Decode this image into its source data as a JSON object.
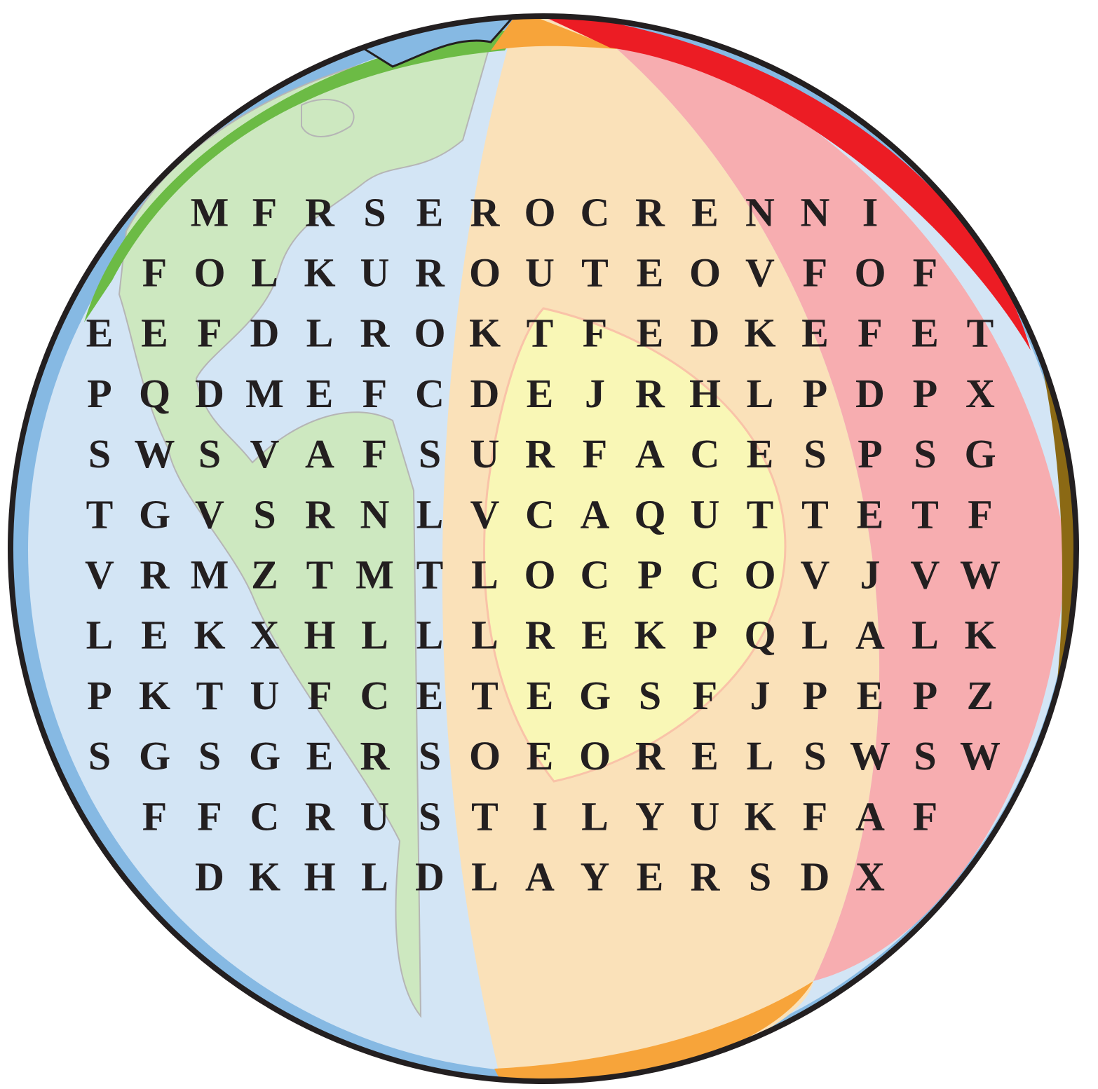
{
  "puzzle": {
    "rows": [
      [
        "M",
        "F",
        "R",
        "S",
        "E",
        "R",
        "O",
        "C",
        "R",
        "E",
        "N",
        "N",
        "I"
      ],
      [
        "F",
        "O",
        "L",
        "K",
        "U",
        "R",
        "O",
        "U",
        "T",
        "E",
        "O",
        "V",
        "F",
        "O",
        "F"
      ],
      [
        "E",
        "E",
        "F",
        "D",
        "L",
        "R",
        "O",
        "K",
        "T",
        "F",
        "E",
        "D",
        "K",
        "E",
        "F",
        "E",
        "T"
      ],
      [
        "P",
        "Q",
        "D",
        "M",
        "E",
        "F",
        "C",
        "D",
        "E",
        "J",
        "R",
        "H",
        "L",
        "P",
        "D",
        "P",
        "X"
      ],
      [
        "S",
        "W",
        "S",
        "V",
        "A",
        "F",
        "S",
        "U",
        "R",
        "F",
        "A",
        "C",
        "E",
        "S",
        "P",
        "S",
        "G"
      ],
      [
        "T",
        "G",
        "V",
        "S",
        "R",
        "N",
        "L",
        "V",
        "C",
        "A",
        "Q",
        "U",
        "T",
        "T",
        "E",
        "T",
        "F"
      ],
      [
        "V",
        "R",
        "M",
        "Z",
        "T",
        "M",
        "T",
        "L",
        "O",
        "C",
        "P",
        "C",
        "O",
        "V",
        "J",
        "V",
        "W"
      ],
      [
        "L",
        "E",
        "K",
        "X",
        "H",
        "L",
        "L",
        "L",
        "R",
        "E",
        "K",
        "P",
        "Q",
        "L",
        "A",
        "L",
        "K"
      ],
      [
        "P",
        "K",
        "T",
        "U",
        "F",
        "C",
        "E",
        "T",
        "E",
        "G",
        "S",
        "F",
        "J",
        "P",
        "E",
        "P",
        "Z"
      ],
      [
        "S",
        "G",
        "S",
        "G",
        "E",
        "R",
        "S",
        "O",
        "E",
        "O",
        "R",
        "E",
        "L",
        "S",
        "W",
        "S",
        "W"
      ],
      [
        "F",
        "F",
        "C",
        "R",
        "U",
        "S",
        "T",
        "I",
        "L",
        "Y",
        "U",
        "K",
        "F",
        "A",
        "F"
      ],
      [
        "D",
        "K",
        "H",
        "L",
        "D",
        "L",
        "A",
        "Y",
        "E",
        "R",
        "S",
        "D",
        "X"
      ]
    ]
  }
}
